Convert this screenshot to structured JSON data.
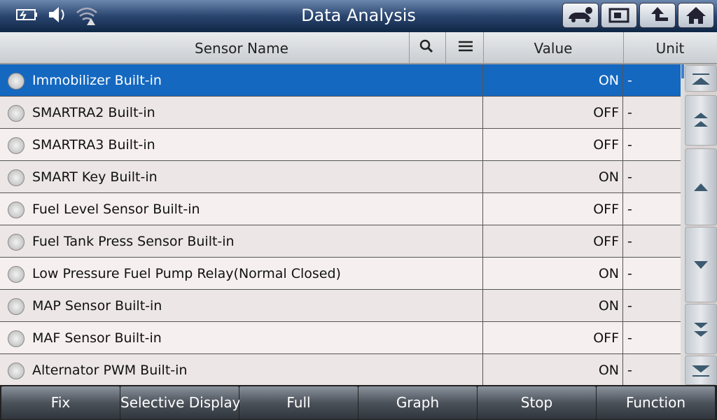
{
  "header": {
    "title": "Data Analysis"
  },
  "table": {
    "columns": [
      "Sensor Name",
      "Value",
      "Unit"
    ],
    "rows": [
      [
        "Immobilizer Built-in",
        "ON",
        "-"
      ],
      [
        "SMARTRA2 Built-in",
        "OFF",
        "-"
      ],
      [
        "SMARTRA3 Built-in",
        "OFF",
        "-"
      ],
      [
        "SMART Key Built-in",
        "ON",
        "-"
      ],
      [
        "Fuel Level Sensor Built-in",
        "OFF",
        "-"
      ],
      [
        "Fuel Tank Press Sensor Built-in",
        "OFF",
        "-"
      ],
      [
        "Low Pressure Fuel Pump Relay(Normal Closed)",
        "ON",
        "-"
      ],
      [
        "MAP Sensor Built-in",
        "ON",
        "-"
      ],
      [
        "MAF Sensor Built-in",
        "OFF",
        "-"
      ],
      [
        "Alternator PWM Built-in",
        "ON",
        "-"
      ]
    ]
  },
  "footer": {
    "buttons": [
      "Fix",
      "Selective Display",
      "Full",
      "Graph",
      "Stop",
      "Function"
    ]
  }
}
